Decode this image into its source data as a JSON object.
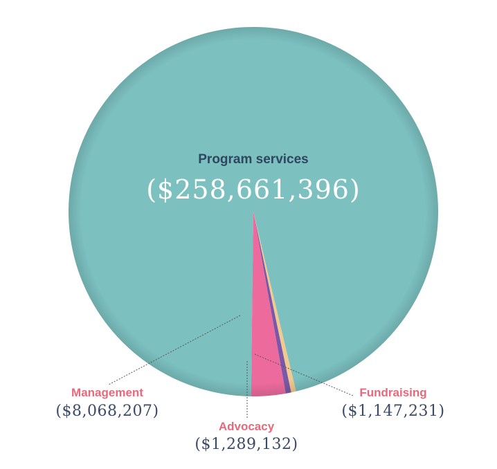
{
  "colors": {
    "program": "#7cc0c0",
    "management": "#ec6b9c",
    "advocacy": "#7a58a8",
    "fundraising": "#f2c98e",
    "dark_label": "#2e4660",
    "pink_label": "#e9697a",
    "amount_dark": "#3a4a68",
    "amount_white": "#ffffff",
    "leader_line": "#555555"
  },
  "chart_data": {
    "type": "pie",
    "slices": [
      {
        "name": "Program services",
        "value": 258661396,
        "value_label": "($258,661,396)",
        "color": "#7cc0c0"
      },
      {
        "name": "Fundraising",
        "value": 1147231,
        "value_label": "($1,147,231)",
        "color": "#f2c98e"
      },
      {
        "name": "Advocacy",
        "value": 1289132,
        "value_label": "($1,289,132)",
        "color": "#7a58a8"
      },
      {
        "name": "Management",
        "value": 8068207,
        "value_label": "($8,068,207)",
        "color": "#ec6b9c"
      }
    ]
  }
}
